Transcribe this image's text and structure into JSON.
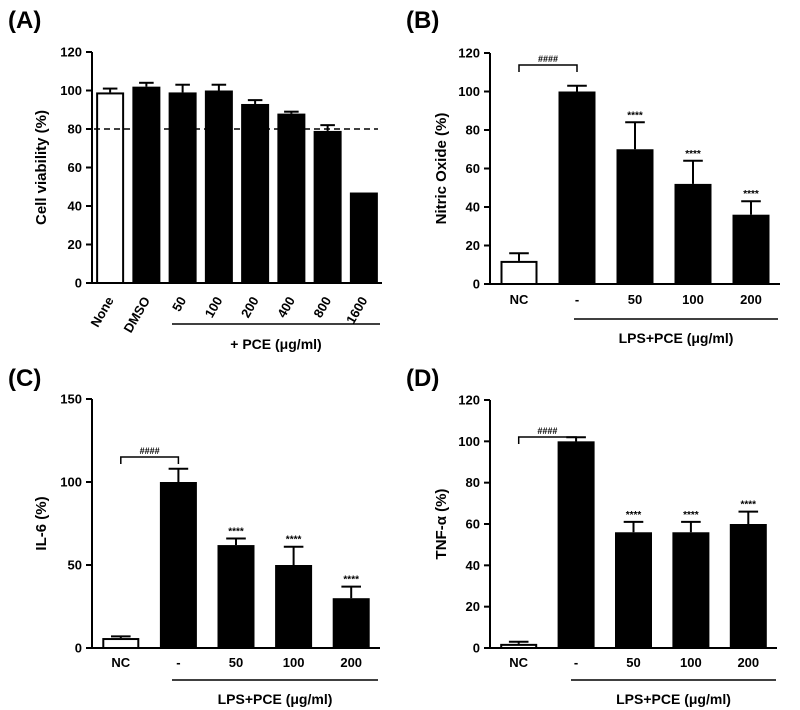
{
  "chart_data": [
    {
      "panel_label": "(A)",
      "type": "bar",
      "ylabel": "Cell viability (%)",
      "ylim": [
        0,
        120
      ],
      "yticks": [
        0,
        20,
        40,
        60,
        80,
        100,
        120
      ],
      "categories": [
        "None",
        "DMSO",
        "50",
        "100",
        "200",
        "400",
        "800",
        "1600"
      ],
      "values": [
        99,
        102,
        99,
        100,
        93,
        88,
        79,
        47
      ],
      "errors": [
        2,
        2,
        4,
        3,
        2,
        1,
        3,
        0
      ],
      "fill": [
        "white",
        "black",
        "black",
        "black",
        "black",
        "black",
        "black",
        "black"
      ],
      "reference_line": 80,
      "group_label": "+ PCE (μg/ml)",
      "group_start": 2,
      "x_label_rotation": -60,
      "stars": [
        "",
        "",
        "",
        "",
        "",
        "",
        "",
        ""
      ],
      "hash_label": ""
    },
    {
      "panel_label": "(B)",
      "type": "bar",
      "ylabel": "Nitric Oxide (%)",
      "ylim": [
        0,
        120
      ],
      "yticks": [
        0,
        20,
        40,
        60,
        80,
        100,
        120
      ],
      "categories": [
        "NC",
        "-",
        "50",
        "100",
        "200"
      ],
      "values": [
        12,
        100,
        70,
        52,
        36
      ],
      "errors": [
        4,
        3,
        14,
        12,
        7
      ],
      "fill": [
        "white",
        "black",
        "black",
        "black",
        "black"
      ],
      "stars": [
        "",
        "",
        "****",
        "****",
        "****"
      ],
      "hash_label": "####",
      "group_label": "LPS+PCE (μg/ml)",
      "group_start": 1
    },
    {
      "panel_label": "(C)",
      "type": "bar",
      "ylabel": "IL-6 (%)",
      "ylim": [
        0,
        150
      ],
      "yticks": [
        0,
        50,
        100,
        150
      ],
      "categories": [
        "NC",
        "-",
        "50",
        "100",
        "200"
      ],
      "values": [
        6,
        100,
        62,
        50,
        30
      ],
      "errors": [
        1,
        8,
        4,
        11,
        7
      ],
      "fill": [
        "white",
        "black",
        "black",
        "black",
        "black"
      ],
      "stars": [
        "",
        "",
        "****",
        "****",
        "****"
      ],
      "hash_label": "####",
      "group_label": "LPS+PCE (μg/ml)",
      "group_start": 1
    },
    {
      "panel_label": "(D)",
      "type": "bar",
      "ylabel": "TNF-α (%)",
      "ylim": [
        0,
        120
      ],
      "yticks": [
        0,
        20,
        40,
        60,
        80,
        100,
        120
      ],
      "categories": [
        "NC",
        "-",
        "50",
        "100",
        "200"
      ],
      "values": [
        2,
        100,
        56,
        56,
        60
      ],
      "errors": [
        1,
        2,
        5,
        5,
        6
      ],
      "fill": [
        "white",
        "black",
        "black",
        "black",
        "black"
      ],
      "stars": [
        "",
        "",
        "****",
        "****",
        "****"
      ],
      "hash_label": "####",
      "group_label": "LPS+PCE (μg/ml)",
      "group_start": 1
    }
  ]
}
